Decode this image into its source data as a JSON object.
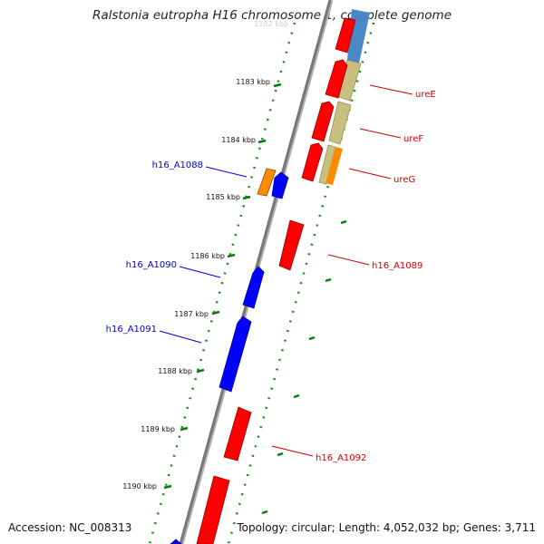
{
  "title": "Ralstonia eutropha H16 chromosome 1, complete genome",
  "footer": {
    "accession": "Accession: NC_008313",
    "summary": "Topology: circular; Length: 4,052,032 bp; Genes: 3,711"
  },
  "top_partial_label": "1182 kbp",
  "ticks": [
    {
      "label": "1183 kbp"
    },
    {
      "label": "1184 kbp"
    },
    {
      "label": "1185 kbp"
    },
    {
      "label": "1186 kbp"
    },
    {
      "label": "1187 kbp"
    },
    {
      "label": "1188 kbp"
    },
    {
      "label": "1189 kbp"
    },
    {
      "label": "1190 kbp"
    }
  ],
  "genes": [
    {
      "name": "ureE",
      "strand": "forward",
      "color": "#cc0000"
    },
    {
      "name": "ureF",
      "strand": "forward",
      "color": "#cc0000"
    },
    {
      "name": "ureG",
      "strand": "forward",
      "color": "#cc0000"
    },
    {
      "name": "h16_A1089",
      "strand": "forward",
      "color": "#cc0000"
    },
    {
      "name": "h16_A1092",
      "strand": "forward",
      "color": "#cc0000"
    },
    {
      "name": "h16_A1088",
      "strand": "reverse",
      "color": "#0000cc"
    },
    {
      "name": "h16_A1090",
      "strand": "reverse",
      "color": "#0000cc"
    },
    {
      "name": "h16_A1091",
      "strand": "reverse",
      "color": "#0000cc"
    }
  ],
  "colors": {
    "forward_gene": "#ff0000",
    "reverse_gene": "#0000ff",
    "cog_khaki": "#c8c080",
    "cog_blue": "#4a88c8",
    "cog_orange": "#ff8c00",
    "backbone": "#808080",
    "tick": "#008000"
  }
}
